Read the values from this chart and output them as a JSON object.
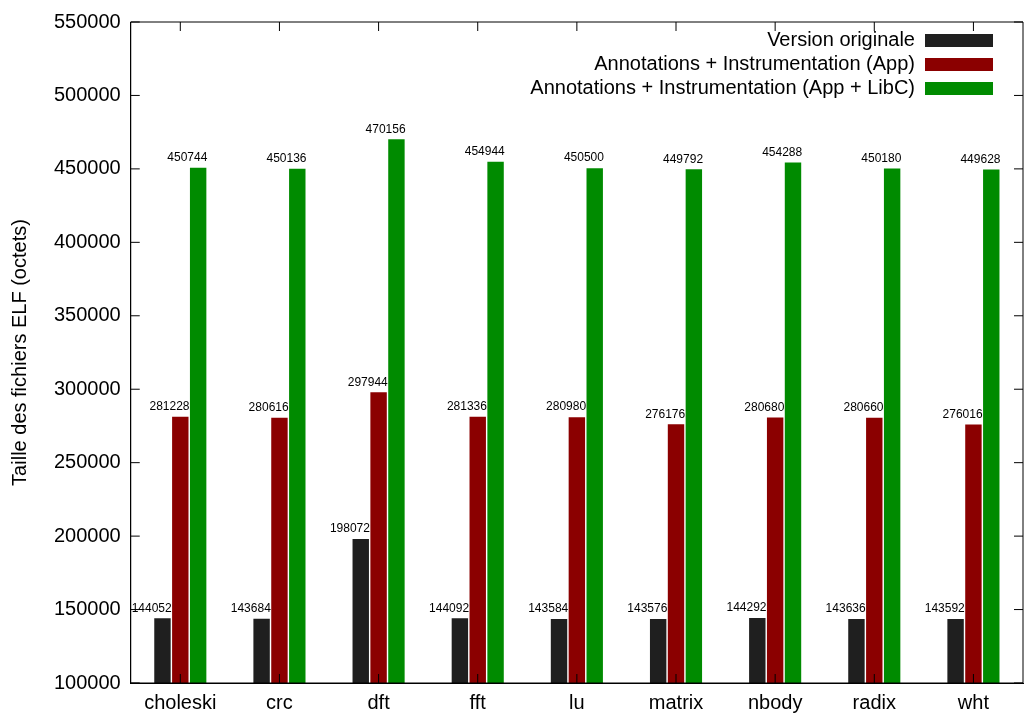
{
  "chart_data": {
    "type": "bar",
    "ylabel": "Taille des fichiers ELF (octets)",
    "categories": [
      "choleski",
      "crc",
      "dft",
      "fft",
      "lu",
      "matrix",
      "nbody",
      "radix",
      "wht"
    ],
    "series": [
      {
        "name": "Version originale",
        "color": "#1f1f1f",
        "values": [
          144052,
          143684,
          198072,
          144092,
          143584,
          143576,
          144292,
          143636,
          143592
        ]
      },
      {
        "name": "Annotations + Instrumentation (App)",
        "color": "#8b0000",
        "values": [
          281228,
          280616,
          297944,
          281336,
          280980,
          276176,
          280680,
          280660,
          276016
        ]
      },
      {
        "name": "Annotations + Instrumentation (App + LibC)",
        "color": "#008b00",
        "values": [
          450744,
          450136,
          470156,
          454944,
          450500,
          449792,
          454288,
          450180,
          449628
        ]
      }
    ],
    "ylim": [
      100000,
      550000
    ],
    "yticks": [
      100000,
      150000,
      200000,
      250000,
      300000,
      350000,
      400000,
      450000,
      500000,
      550000
    ],
    "data_labels": true,
    "legend": "top right",
    "grid": false
  }
}
